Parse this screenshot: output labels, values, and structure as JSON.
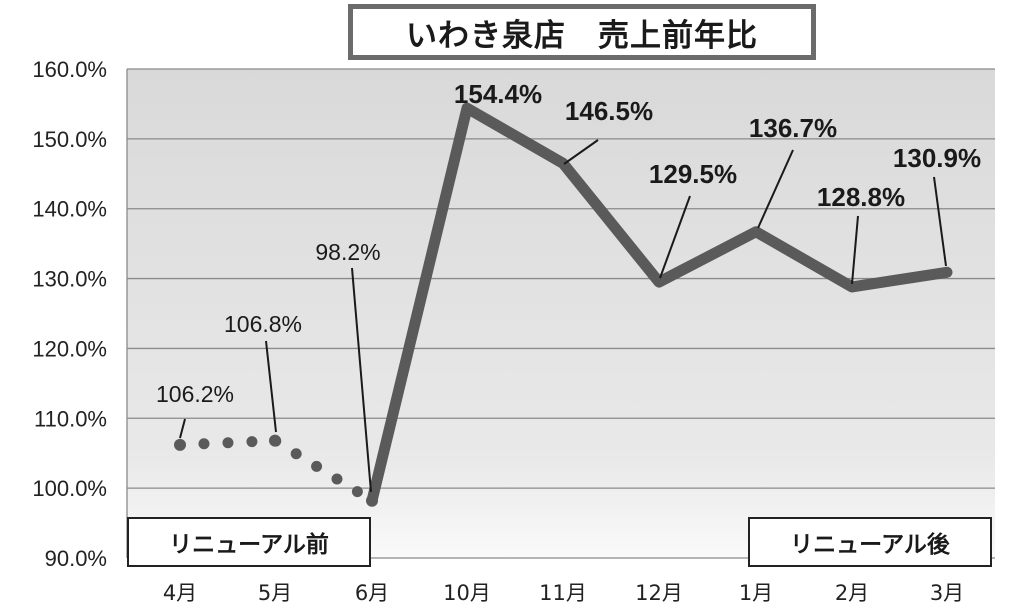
{
  "chart_data": {
    "type": "line",
    "title": "いわき泉店　売上前年比",
    "xlabel": "",
    "ylabel": "",
    "categories": [
      "4月",
      "5月",
      "6月",
      "10月",
      "11月",
      "12月",
      "1月",
      "2月",
      "3月"
    ],
    "ylim": [
      90.0,
      160.0
    ],
    "yticks": [
      "90.0%",
      "100.0%",
      "110.0%",
      "120.0%",
      "130.0%",
      "140.0%",
      "150.0%",
      "160.0%"
    ],
    "grid": true,
    "series": [
      {
        "style": "dotted",
        "color": "#5a5a5a",
        "points": [
          {
            "x": "4月",
            "y": 106.2
          },
          {
            "x": "5月",
            "y": 106.8
          },
          {
            "x": "6月",
            "y": 98.2
          }
        ],
        "labels": [
          "106.2%",
          "106.8%",
          "98.2%"
        ]
      },
      {
        "style": "solid",
        "color": "#5a5a5a",
        "points": [
          {
            "x": "6月",
            "y": 98.2
          },
          {
            "x": "10月",
            "y": 154.4
          },
          {
            "x": "11月",
            "y": 146.5
          },
          {
            "x": "12月",
            "y": 129.5
          },
          {
            "x": "1月",
            "y": 136.7
          },
          {
            "x": "2月",
            "y": 128.8
          },
          {
            "x": "3月",
            "y": 130.9
          }
        ],
        "labels": [
          null,
          "154.4%",
          "146.5%",
          "129.5%",
          "136.7%",
          "128.8%",
          "130.9%"
        ]
      }
    ],
    "annotations": {
      "before": "リニューアル前",
      "after": "リニューアル後"
    }
  }
}
